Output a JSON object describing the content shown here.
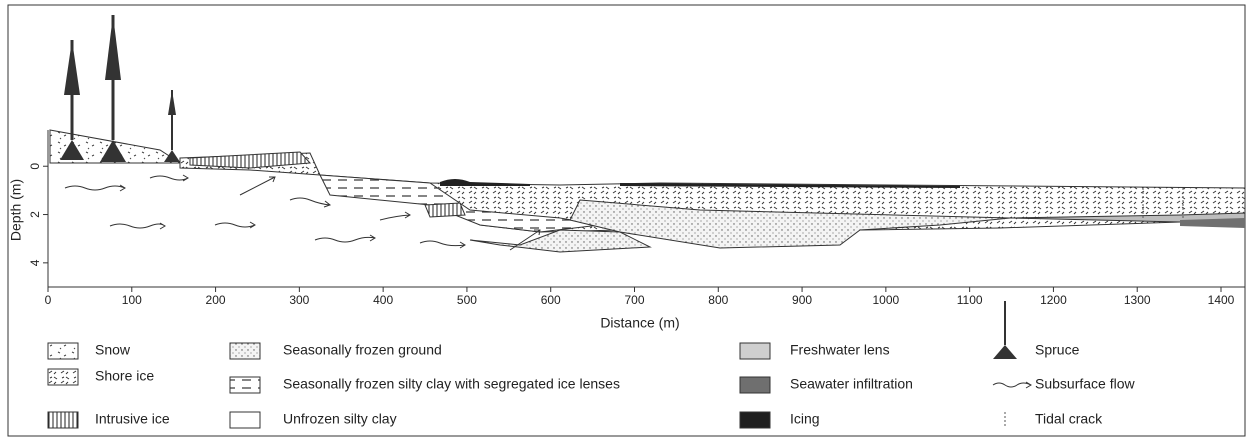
{
  "chart_data": {
    "type": "cross-section",
    "xlabel": "Distance (m)",
    "ylabel": "Depth (m)",
    "xlim": [
      0,
      1450
    ],
    "xticks": [
      0,
      100,
      200,
      300,
      400,
      500,
      600,
      700,
      800,
      900,
      1000,
      1100,
      1200,
      1300,
      1400
    ],
    "ylim": [
      -1.5,
      5
    ],
    "yticks": [
      0,
      2,
      4
    ],
    "legend": [
      "Snow",
      "Shore ice",
      "Intrusive ice",
      "Seasonally frozen ground",
      "Seasonally frozen silty clay with segregated ice lenses",
      "Unfrozen silty clay",
      "Freshwater lens",
      "Seawater infiltration",
      "Icing",
      "Spruce",
      "Subsurface flow",
      "Tidal crack"
    ]
  }
}
